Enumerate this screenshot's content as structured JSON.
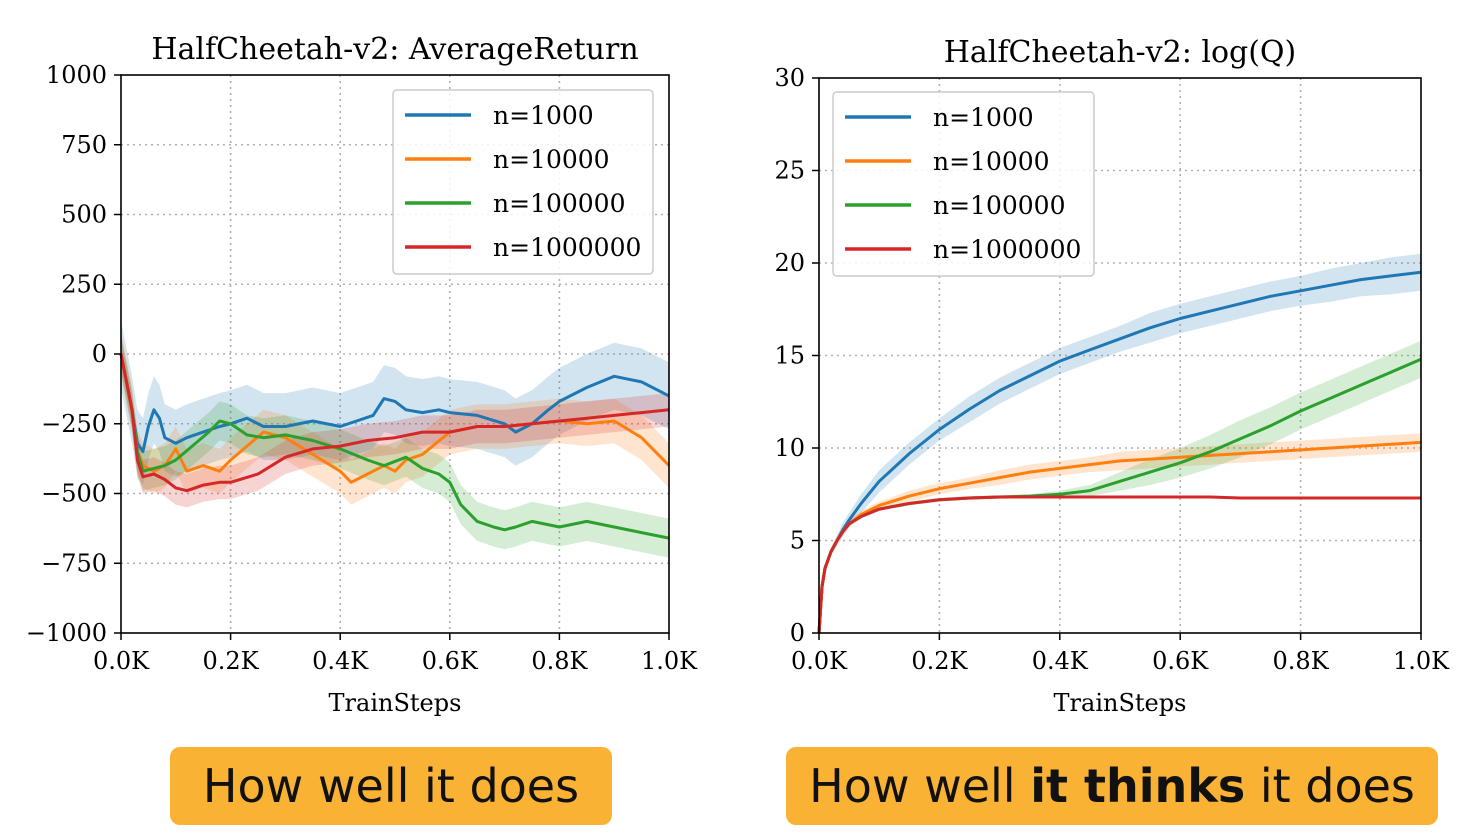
{
  "chart_data": [
    {
      "type": "line",
      "title": "HalfCheetah-v2:  AverageReturn",
      "xlabel": "TrainSteps",
      "ylabel": "",
      "xlim": [
        0,
        1000
      ],
      "ylim": [
        -1000,
        1000
      ],
      "xticks": [
        0,
        200,
        400,
        600,
        800,
        1000
      ],
      "xtick_labels": [
        "0.0K",
        "0.2K",
        "0.4K",
        "0.6K",
        "0.8K",
        "1.0K"
      ],
      "yticks": [
        -1000,
        -750,
        -500,
        -250,
        0,
        250,
        500,
        750,
        1000
      ],
      "ytick_labels": [
        "−1000",
        "−750",
        "−500",
        "−250",
        "0",
        "250",
        "500",
        "750",
        "1000"
      ],
      "grid": true,
      "legend_position": "top-right",
      "series": [
        {
          "name": "n=1000",
          "color": "#1f77b4",
          "x": [
            0,
            20,
            30,
            40,
            50,
            60,
            70,
            80,
            100,
            120,
            150,
            180,
            200,
            230,
            260,
            300,
            350,
            400,
            430,
            460,
            480,
            500,
            520,
            550,
            580,
            600,
            650,
            700,
            720,
            750,
            780,
            800,
            850,
            900,
            950,
            1000
          ],
          "y": [
            0,
            -200,
            -320,
            -350,
            -260,
            -200,
            -230,
            -300,
            -320,
            -300,
            -280,
            -260,
            -250,
            -230,
            -260,
            -260,
            -240,
            -260,
            -240,
            -220,
            -160,
            -170,
            -200,
            -210,
            -200,
            -210,
            -220,
            -250,
            -280,
            -250,
            -200,
            -170,
            -120,
            -80,
            -100,
            -150
          ],
          "band": 120
        },
        {
          "name": "n=10000",
          "color": "#ff7f0e",
          "x": [
            0,
            20,
            30,
            40,
            60,
            80,
            100,
            120,
            150,
            180,
            200,
            230,
            260,
            300,
            350,
            400,
            420,
            450,
            480,
            500,
            520,
            550,
            600,
            650,
            700,
            750,
            800,
            850,
            900,
            950,
            1000
          ],
          "y": [
            0,
            -200,
            -350,
            -400,
            -420,
            -400,
            -340,
            -420,
            -400,
            -420,
            -380,
            -330,
            -280,
            -300,
            -360,
            -420,
            -460,
            -430,
            -400,
            -420,
            -380,
            -360,
            -280,
            -260,
            -260,
            -250,
            -240,
            -250,
            -240,
            -300,
            -400
          ],
          "band": 80
        },
        {
          "name": "n=100000",
          "color": "#2ca02c",
          "x": [
            0,
            20,
            30,
            40,
            60,
            80,
            100,
            130,
            160,
            180,
            200,
            230,
            260,
            300,
            350,
            400,
            450,
            480,
            520,
            550,
            580,
            600,
            620,
            650,
            680,
            700,
            720,
            750,
            800,
            850,
            900,
            950,
            1000
          ],
          "y": [
            0,
            -200,
            -350,
            -420,
            -410,
            -400,
            -380,
            -330,
            -280,
            -240,
            -250,
            -290,
            -300,
            -290,
            -310,
            -340,
            -380,
            -400,
            -370,
            -410,
            -430,
            -460,
            -540,
            -600,
            -620,
            -630,
            -620,
            -600,
            -620,
            -600,
            -620,
            -640,
            -660
          ],
          "band": 70
        },
        {
          "name": "n=1000000",
          "color": "#d62728",
          "x": [
            0,
            20,
            30,
            40,
            60,
            80,
            100,
            120,
            150,
            180,
            200,
            250,
            300,
            350,
            400,
            450,
            500,
            550,
            600,
            650,
            700,
            750,
            800,
            850,
            900,
            950,
            1000
          ],
          "y": [
            0,
            -200,
            -380,
            -440,
            -430,
            -450,
            -480,
            -490,
            -470,
            -460,
            -460,
            -430,
            -370,
            -340,
            -330,
            -310,
            -300,
            -280,
            -280,
            -260,
            -260,
            -250,
            -240,
            -230,
            -220,
            -210,
            -200
          ],
          "band": 60
        }
      ]
    },
    {
      "type": "line",
      "title": "HalfCheetah-v2:  log(Q)",
      "xlabel": "TrainSteps",
      "ylabel": "",
      "xlim": [
        0,
        1000
      ],
      "ylim": [
        0,
        30
      ],
      "xticks": [
        0,
        200,
        400,
        600,
        800,
        1000
      ],
      "xtick_labels": [
        "0.0K",
        "0.2K",
        "0.4K",
        "0.6K",
        "0.8K",
        "1.0K"
      ],
      "yticks": [
        0,
        5,
        10,
        15,
        20,
        25,
        30
      ],
      "ytick_labels": [
        "0",
        "5",
        "10",
        "15",
        "20",
        "25",
        "30"
      ],
      "grid": true,
      "legend_position": "top-left",
      "series": [
        {
          "name": "n=1000",
          "color": "#1f77b4",
          "x": [
            0,
            5,
            10,
            20,
            30,
            40,
            50,
            70,
            100,
            150,
            200,
            250,
            300,
            350,
            400,
            450,
            500,
            550,
            600,
            650,
            700,
            750,
            800,
            850,
            900,
            950,
            1000
          ],
          "y": [
            0,
            2.5,
            3.5,
            4.4,
            5.0,
            5.6,
            6.1,
            7.0,
            8.2,
            9.7,
            11.0,
            12.1,
            13.1,
            13.9,
            14.7,
            15.3,
            15.9,
            16.5,
            17.0,
            17.4,
            17.8,
            18.2,
            18.5,
            18.8,
            19.1,
            19.3,
            19.5
          ],
          "band": [
            0,
            0,
            0.1,
            0.2,
            0.3,
            0.4,
            0.4,
            0.5,
            0.6,
            0.6,
            0.6,
            0.7,
            0.7,
            0.7,
            0.7,
            0.7,
            0.7,
            0.8,
            0.8,
            0.8,
            0.8,
            0.8,
            0.8,
            0.9,
            0.9,
            1.0,
            1.0
          ]
        },
        {
          "name": "n=10000",
          "color": "#ff7f0e",
          "x": [
            0,
            5,
            10,
            20,
            30,
            40,
            50,
            70,
            100,
            150,
            200,
            250,
            300,
            350,
            400,
            450,
            500,
            550,
            600,
            650,
            700,
            750,
            800,
            850,
            900,
            950,
            1000
          ],
          "y": [
            0,
            2.5,
            3.5,
            4.4,
            5.0,
            5.5,
            5.9,
            6.4,
            6.9,
            7.4,
            7.8,
            8.1,
            8.4,
            8.7,
            8.9,
            9.1,
            9.3,
            9.4,
            9.5,
            9.6,
            9.7,
            9.8,
            9.9,
            10.0,
            10.1,
            10.2,
            10.3
          ],
          "band": [
            0,
            0,
            0.1,
            0.1,
            0.1,
            0.1,
            0.2,
            0.2,
            0.2,
            0.3,
            0.3,
            0.3,
            0.4,
            0.4,
            0.4,
            0.4,
            0.5,
            0.5,
            0.5,
            0.5,
            0.5,
            0.5,
            0.5,
            0.5,
            0.5,
            0.5,
            0.5
          ]
        },
        {
          "name": "n=100000",
          "color": "#2ca02c",
          "x": [
            0,
            5,
            10,
            20,
            30,
            40,
            50,
            70,
            100,
            150,
            200,
            250,
            300,
            350,
            400,
            450,
            500,
            550,
            600,
            650,
            700,
            750,
            800,
            850,
            900,
            950,
            1000
          ],
          "y": [
            0,
            2.5,
            3.5,
            4.4,
            5.0,
            5.5,
            5.9,
            6.3,
            6.7,
            7.0,
            7.2,
            7.3,
            7.35,
            7.4,
            7.5,
            7.7,
            8.2,
            8.7,
            9.2,
            9.8,
            10.5,
            11.2,
            12.0,
            12.7,
            13.4,
            14.1,
            14.8
          ],
          "band": [
            0,
            0,
            0.1,
            0.1,
            0.1,
            0.1,
            0.1,
            0.1,
            0.1,
            0.1,
            0.1,
            0.1,
            0.1,
            0.1,
            0.2,
            0.3,
            0.5,
            0.7,
            0.8,
            0.9,
            1.0,
            1.0,
            1.0,
            1.0,
            1.0,
            1.0,
            1.0
          ]
        },
        {
          "name": "n=1000000",
          "color": "#d62728",
          "x": [
            0,
            5,
            10,
            20,
            30,
            40,
            50,
            70,
            100,
            150,
            200,
            250,
            300,
            350,
            400,
            450,
            500,
            550,
            600,
            650,
            700,
            750,
            800,
            850,
            900,
            950,
            1000
          ],
          "y": [
            0,
            2.5,
            3.5,
            4.4,
            5.0,
            5.5,
            5.9,
            6.3,
            6.7,
            7.0,
            7.2,
            7.3,
            7.35,
            7.35,
            7.35,
            7.35,
            7.35,
            7.35,
            7.35,
            7.35,
            7.3,
            7.3,
            7.3,
            7.3,
            7.3,
            7.3,
            7.3
          ],
          "band": [
            0,
            0,
            0.05,
            0.05,
            0.05,
            0.05,
            0.05,
            0.05,
            0.05,
            0.05,
            0.05,
            0.05,
            0.05,
            0.05,
            0.05,
            0.05,
            0.05,
            0.05,
            0.05,
            0.05,
            0.05,
            0.05,
            0.05,
            0.05,
            0.05,
            0.05,
            0.05
          ]
        }
      ]
    }
  ],
  "captions": {
    "left": "How well it does",
    "right_pre": "How well ",
    "right_bold": "it thinks",
    "right_post": " it does"
  }
}
